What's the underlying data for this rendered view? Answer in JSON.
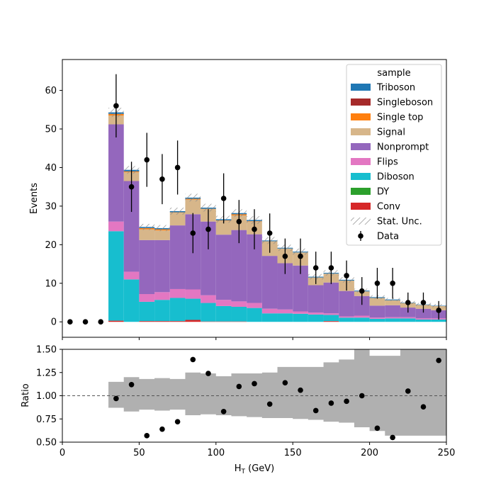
{
  "chart_data": [
    {
      "type": "stacked-step-histogram",
      "ylabel": "Events",
      "ylim": [
        -4,
        68
      ],
      "xlim": [
        0,
        250
      ],
      "y_ticks": [
        0,
        10,
        20,
        30,
        40,
        50,
        60
      ],
      "bin_edges": [
        30,
        40,
        50,
        60,
        70,
        80,
        90,
        100,
        110,
        120,
        130,
        140,
        150,
        160,
        170,
        180,
        190,
        200,
        210,
        220,
        230,
        240,
        250
      ],
      "legend": {
        "title": "sample",
        "placement": "top-right",
        "stat_unc_label": "Stat. Unc.",
        "data_label": "Data"
      },
      "series": [
        {
          "name": "Conv",
          "color": "#d62728",
          "values": [
            0.3,
            0,
            0.2,
            0.2,
            0.2,
            0.5,
            0.1,
            0.1,
            0.1,
            0,
            0,
            0,
            0,
            0,
            0.2,
            0,
            0,
            0,
            0,
            0,
            0,
            0
          ]
        },
        {
          "name": "DY",
          "color": "#2ca02c",
          "values": [
            0,
            0,
            0,
            0,
            0,
            0,
            0,
            0,
            0,
            0,
            0,
            0,
            0,
            0,
            0,
            0,
            0,
            0,
            0,
            0,
            0,
            0
          ]
        },
        {
          "name": "Diboson",
          "color": "#17becf",
          "values": [
            23.2,
            11,
            5,
            5.5,
            6,
            5.5,
            4.8,
            4,
            3.8,
            3.6,
            2.2,
            2.2,
            2.1,
            1.9,
            1.6,
            1.1,
            1.1,
            0.8,
            0.9,
            0.9,
            0.6,
            0.6
          ]
        },
        {
          "name": "Flips",
          "color": "#e377c2",
          "values": [
            2.5,
            2,
            2,
            2,
            2.3,
            2.4,
            2,
            1.6,
            1.4,
            1.3,
            1.2,
            1,
            0.6,
            0.5,
            0.4,
            0.3,
            0.5,
            0.3,
            0.3,
            0.3,
            0.3,
            0.3
          ]
        },
        {
          "name": "Nonprompt",
          "color": "#9467bd",
          "values": [
            25.2,
            23.5,
            14,
            13.5,
            16.5,
            19.5,
            19.1,
            16.9,
            18.5,
            17.8,
            13.7,
            12,
            11.9,
            7.1,
            8,
            6.6,
            5.1,
            3.1,
            3.1,
            2.5,
            2.5,
            2.1
          ]
        },
        {
          "name": "Signal",
          "color": "#d7b68a",
          "values": [
            2.3,
            2.3,
            2.8,
            2.5,
            3.3,
            3.8,
            3.2,
            3.6,
            3.8,
            3.3,
            3.8,
            3.8,
            3.4,
            2,
            2.3,
            2.7,
            1.2,
            2,
            1.3,
            1.2,
            1,
            1.1
          ]
        },
        {
          "name": "Single top",
          "color": "#ff7f0e",
          "values": [
            0.4,
            0.2,
            0.3,
            0.3,
            0.1,
            0.2,
            0.1,
            0.1,
            0.3,
            0.1,
            0,
            0,
            0,
            0,
            0,
            0,
            0,
            0,
            0,
            0,
            0,
            0
          ]
        },
        {
          "name": "Singleboson",
          "color": "#a52a2a",
          "values": [
            0,
            0,
            0,
            0,
            0,
            0,
            0,
            0,
            0,
            0,
            0,
            0,
            0,
            0,
            0,
            0,
            0,
            0,
            0,
            0,
            0,
            0
          ]
        },
        {
          "name": "Triboson",
          "color": "#1f77b4",
          "values": [
            0.4,
            0.4,
            0.3,
            0.3,
            0.3,
            0.3,
            0.3,
            0.3,
            0.3,
            0.3,
            0.2,
            0.2,
            0.2,
            0.2,
            0.2,
            0.2,
            0.2,
            0.2,
            0.2,
            0.1,
            0.1,
            0.1
          ]
        }
      ],
      "stat_unc": [
        1.2,
        1,
        0.8,
        0.8,
        0.9,
        1,
        1,
        0.9,
        1,
        1,
        0.9,
        0.8,
        0.8,
        0.7,
        0.7,
        0.7,
        0.5,
        0.5,
        0.4,
        0.4,
        0.4,
        0.4
      ],
      "data": {
        "x": [
          5,
          15,
          25,
          35,
          45,
          55,
          65,
          75,
          85,
          95,
          105,
          115,
          125,
          135,
          145,
          155,
          165,
          175,
          185,
          195,
          205,
          215,
          225,
          235,
          245
        ],
        "y": [
          0,
          0,
          0,
          56,
          35,
          42,
          37,
          40,
          23,
          24,
          32,
          26,
          24,
          23,
          17,
          17,
          14,
          14,
          12,
          8,
          10,
          10,
          5,
          5,
          3
        ],
        "err": [
          0,
          0,
          0,
          8.2,
          6.5,
          7,
          6.5,
          7,
          5.2,
          5.2,
          6.5,
          5.6,
          5.2,
          5.1,
          4.6,
          4.6,
          4.2,
          4.2,
          3.9,
          3.6,
          4,
          4,
          2.6,
          2.6,
          2.4
        ]
      }
    },
    {
      "type": "ratio",
      "xlabel": "H",
      "xlabel_sub": "T",
      "xlabel_unit": " (GeV)",
      "ylabel": "Ratio",
      "xlim": [
        0,
        250
      ],
      "ylim": [
        0.5,
        1.5
      ],
      "x_ticks": [
        0,
        50,
        100,
        150,
        200,
        250
      ],
      "y_ticks": [
        "0.50",
        "0.75",
        "1.00",
        "1.25",
        "1.50"
      ],
      "reference_line": 1.0,
      "unc_band": {
        "color": "#b0b0b0",
        "lo": [
          0.87,
          0.83,
          0.85,
          0.84,
          0.85,
          0.79,
          0.8,
          0.79,
          0.78,
          0.77,
          0.76,
          0.76,
          0.75,
          0.74,
          0.72,
          0.71,
          0.66,
          0.62,
          0.57,
          0.57,
          0.57,
          0.57
        ],
        "hi": [
          1.15,
          1.2,
          1.18,
          1.19,
          1.18,
          1.25,
          1.24,
          1.21,
          1.24,
          1.24,
          1.25,
          1.31,
          1.31,
          1.31,
          1.36,
          1.39,
          1.5,
          1.43,
          1.43,
          1.5,
          1.5,
          1.5
        ]
      },
      "points": {
        "x": [
          35,
          45,
          55,
          65,
          75,
          85,
          95,
          105,
          115,
          125,
          135,
          145,
          155,
          165,
          175,
          185,
          195,
          205,
          215,
          225,
          235,
          245
        ],
        "y": [
          0.97,
          1.12,
          0.57,
          0.64,
          0.72,
          1.39,
          1.24,
          0.83,
          1.1,
          1.13,
          0.91,
          1.14,
          1.06,
          0.84,
          0.92,
          0.94,
          1.0,
          0.65,
          0.55,
          1.05,
          0.88,
          1.38
        ]
      }
    }
  ]
}
